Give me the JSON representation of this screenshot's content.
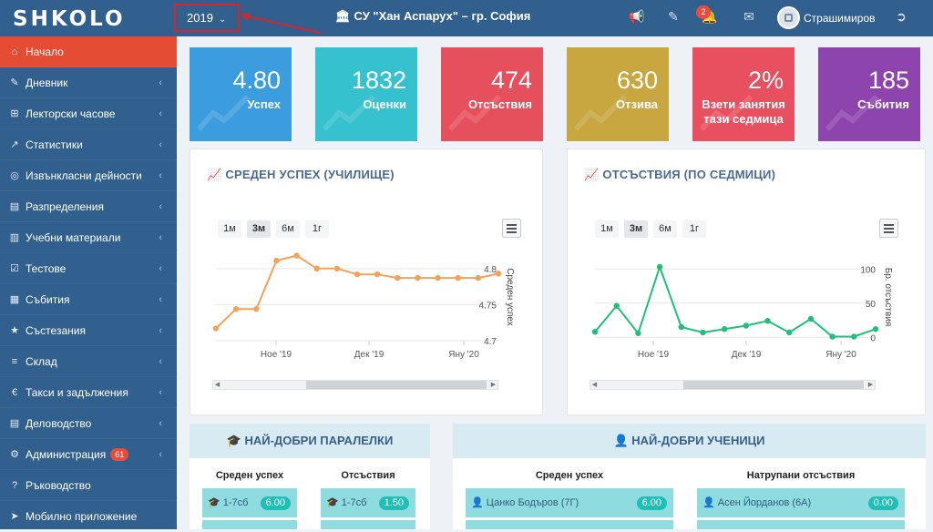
{
  "topbar": {
    "logo": "SHKOLO",
    "year": "2019",
    "school": "СУ \"Хан Аспарух\" – гр. София",
    "notifications": "2",
    "username": "Страшимиров"
  },
  "sidebar": {
    "items": [
      {
        "label": "Начало",
        "icon": "home-icon"
      },
      {
        "label": "Дневник",
        "icon": "edit-icon"
      },
      {
        "label": "Лекторски часове",
        "icon": "plus-box-icon"
      },
      {
        "label": "Статистики",
        "icon": "chart-line-icon"
      },
      {
        "label": "Извънкласни дейности",
        "icon": "ball-icon"
      },
      {
        "label": "Разпределения",
        "icon": "table-icon"
      },
      {
        "label": "Учебни материали",
        "icon": "book-icon"
      },
      {
        "label": "Тестове",
        "icon": "check-box-icon"
      },
      {
        "label": "Събития",
        "icon": "calendar-icon"
      },
      {
        "label": "Състезания",
        "icon": "trophy-icon"
      },
      {
        "label": "Склад",
        "icon": "cart-icon"
      },
      {
        "label": "Такси и задължения",
        "icon": "euro-icon"
      },
      {
        "label": "Деловодство",
        "icon": "file-icon"
      },
      {
        "label": "Администрация",
        "icon": "gears-icon",
        "badge": "61"
      },
      {
        "label": "Ръководство",
        "icon": "question-icon"
      },
      {
        "label": "Мобилно приложение",
        "icon": "rocket-icon"
      }
    ]
  },
  "tiles": [
    {
      "value": "4.80",
      "label": "Успех",
      "color": "#3b9ddd"
    },
    {
      "value": "1832",
      "label": "Оценки",
      "color": "#35c1ce"
    },
    {
      "value": "474",
      "label": "Отсъствия",
      "color": "#e64f5c"
    },
    {
      "value": "630",
      "label": "Отзива",
      "color": "#c8a640"
    },
    {
      "value": "2%",
      "label": "Взети занятия тази седмица",
      "color": "#e84f5f"
    },
    {
      "value": "185",
      "label": "Събития",
      "color": "#8e44ad"
    }
  ],
  "charts": {
    "grades": {
      "title": "СРЕДЕН УСПЕХ (УЧИЛИЩЕ)",
      "ranges": [
        "1м",
        "3м",
        "6м",
        "1г"
      ],
      "selected_range": "3м",
      "ylabel": "Среден успех"
    },
    "absences": {
      "title": "ОТСЪСТВИЯ (ПО СЕДМИЦИ)",
      "ranges": [
        "1м",
        "3м",
        "6м",
        "1г"
      ],
      "selected_range": "3м",
      "ylabel": "Бр. отсъствия"
    }
  },
  "chart_data": [
    {
      "type": "line",
      "title": "СРЕДЕН УСПЕХ (УЧИЛИЩЕ)",
      "ylabel": "Среден успех",
      "x_ticks": [
        "Ное '19",
        "Дек '19",
        "Яну '20"
      ],
      "y_ticks": [
        4.7,
        4.75,
        4.8
      ],
      "ylim": [
        4.7,
        4.82
      ],
      "values": [
        4.717,
        4.744,
        4.744,
        4.811,
        4.818,
        4.8,
        4.8,
        4.792,
        4.792,
        4.787,
        4.787,
        4.787,
        4.787,
        4.787,
        4.793
      ],
      "color": "#f4a25a"
    },
    {
      "type": "line",
      "title": "ОТСЪСТВИЯ (ПО СЕДМИЦИ)",
      "ylabel": "Бр. отсъствия",
      "x_ticks": [
        "Ное '19",
        "Дек '19",
        "Яну '20"
      ],
      "y_ticks": [
        0,
        50,
        100
      ],
      "ylim": [
        -5,
        115
      ],
      "values": [
        8,
        46,
        6,
        103,
        15,
        7,
        12,
        17,
        24,
        7,
        27,
        1,
        1,
        12
      ],
      "color": "#21c07a"
    }
  ],
  "best_classes": {
    "title": "НАЙ-ДОБРИ ПАРАЛЕЛКИ",
    "col1": "Среден успех",
    "col2": "Отсъствия",
    "grade_row": {
      "name": "1-7сб",
      "value": "6.00"
    },
    "absence_row": {
      "name": "1-7сб",
      "value": "1.50"
    }
  },
  "best_students": {
    "title": "НАЙ-ДОБРИ УЧЕНИЦИ",
    "col1": "Среден успех",
    "col2": "Натрупани отсъствия",
    "grade_row": {
      "name": "Цанко Бодъров (7Г)",
      "value": "6.00"
    },
    "absence_row": {
      "name": "Асен Йорданов (6А)",
      "value": "0.00"
    }
  }
}
